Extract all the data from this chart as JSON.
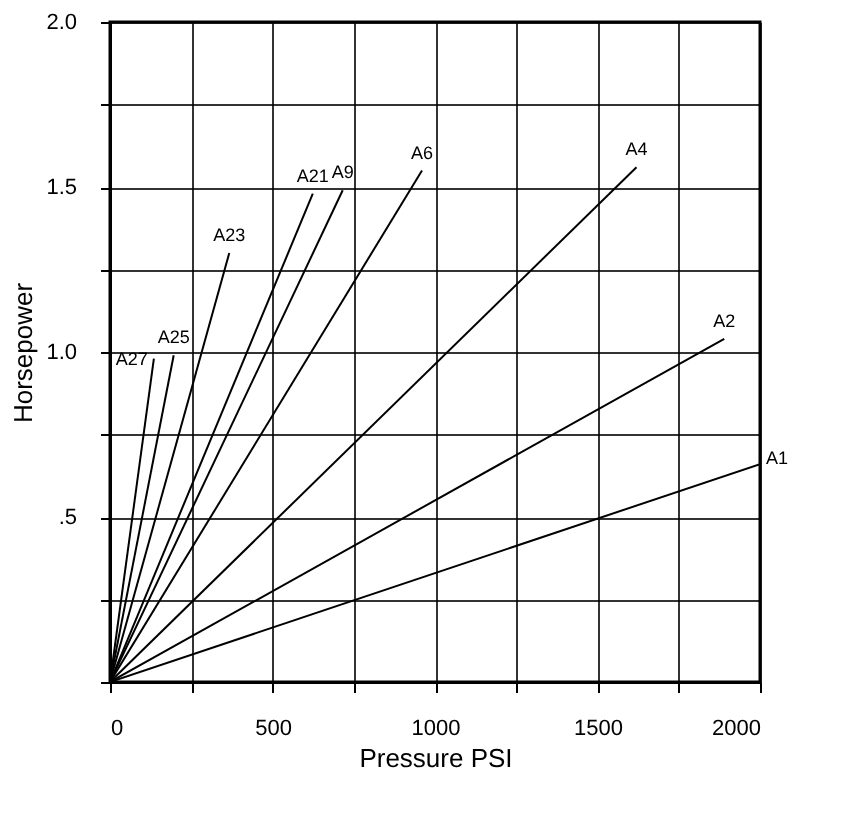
{
  "chart_data": {
    "type": "line",
    "xlabel": "Pressure PSI",
    "ylabel": "Horsepower",
    "xlim": [
      0,
      2000
    ],
    "ylim": [
      0,
      2.0
    ],
    "xticks": [
      {
        "value": 0,
        "label": "0"
      },
      {
        "value": 250,
        "label": null
      },
      500,
      {
        "value": 750,
        "label": null
      },
      1000,
      {
        "value": 1250,
        "label": null
      },
      1500,
      {
        "value": 1750,
        "label": null
      },
      2000
    ],
    "yticks": [
      {
        "value": 0,
        "label": null
      },
      {
        "value": 0.25,
        "label": null
      },
      {
        "value": 0.5,
        "label": ".5"
      },
      {
        "value": 0.75,
        "label": null
      },
      {
        "value": 1.0,
        "label": "1.0"
      },
      {
        "value": 1.25,
        "label": null
      },
      {
        "value": 1.5,
        "label": "1.5"
      },
      {
        "value": 1.75,
        "label": null
      },
      {
        "value": 2.0,
        "label": "2.0"
      }
    ],
    "grid": true,
    "legend": false,
    "marker": "none",
    "line_style": "solid",
    "series": [
      {
        "name": "A1",
        "color": "#000000",
        "x": [
          0,
          2000
        ],
        "values": [
          0,
          0.66
        ]
      },
      {
        "name": "A2",
        "color": "#000000",
        "x": [
          0,
          1890
        ],
        "values": [
          0,
          1.04
        ]
      },
      {
        "name": "A4",
        "color": "#000000",
        "x": [
          0,
          1620
        ],
        "values": [
          0,
          1.56
        ]
      },
      {
        "name": "A6",
        "color": "#000000",
        "x": [
          0,
          960
        ],
        "values": [
          0,
          1.55
        ]
      },
      {
        "name": "A9",
        "color": "#000000",
        "x": [
          0,
          716
        ],
        "values": [
          0,
          1.49
        ]
      },
      {
        "name": "A21",
        "color": "#000000",
        "x": [
          0,
          624
        ],
        "values": [
          0,
          1.48
        ]
      },
      {
        "name": "A23",
        "color": "#000000",
        "x": [
          0,
          367
        ],
        "values": [
          0,
          1.3
        ]
      },
      {
        "name": "A25",
        "color": "#000000",
        "x": [
          0,
          196
        ],
        "values": [
          0,
          0.99
        ]
      },
      {
        "name": "A27",
        "color": "#000000",
        "x": [
          0,
          135
        ],
        "values": [
          0,
          0.98
        ]
      }
    ]
  }
}
